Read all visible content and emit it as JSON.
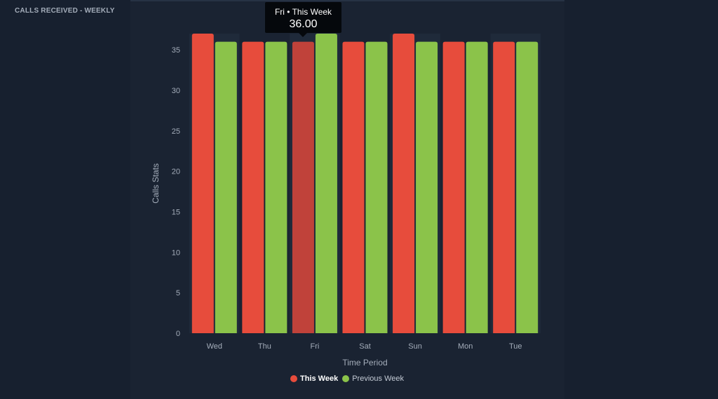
{
  "panel": {
    "title": "CALLS RECEIVED - WEEKLY"
  },
  "tooltip": {
    "label": "Fri • This Week",
    "value": "36.00"
  },
  "colors": {
    "this_week": "#e74c3c",
    "this_week_hover": "#c0423a",
    "previous_week": "#8bc34a",
    "axis_text": "#a4adba",
    "band": "#1f2a3a"
  },
  "chart_data": {
    "type": "bar",
    "title": "",
    "xlabel": "Time Period",
    "ylabel": "Calls Stats",
    "categories": [
      "Wed",
      "Thu",
      "Fri",
      "Sat",
      "Sun",
      "Mon",
      "Tue"
    ],
    "series": [
      {
        "name": "This Week",
        "values": [
          37,
          36,
          36,
          36,
          37,
          36,
          36
        ]
      },
      {
        "name": "Previous Week",
        "values": [
          36,
          36,
          37,
          36,
          36,
          36,
          36
        ]
      }
    ],
    "ylim": [
      0,
      37
    ],
    "yticks": [
      0,
      5,
      10,
      15,
      20,
      25,
      30,
      35
    ],
    "grid": false,
    "legend": "bottom-center",
    "highlighted": {
      "category": "Fri",
      "series": "This Week"
    }
  }
}
